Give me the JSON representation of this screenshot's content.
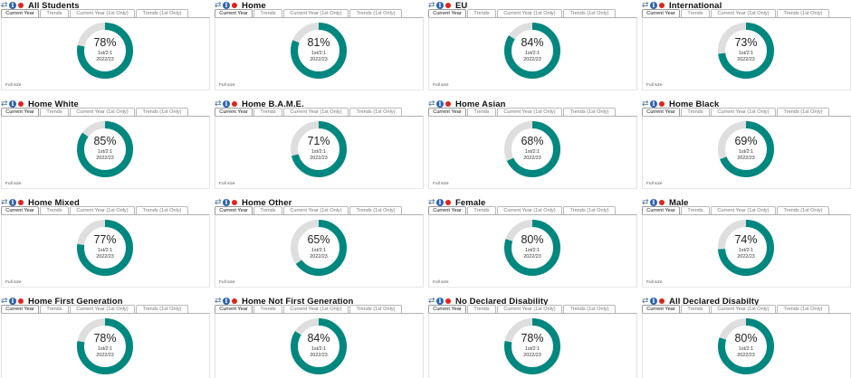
{
  "tabs": [
    "Current Year",
    "Trends",
    "Current Year (1st Only)",
    "Trends (1st Only)"
  ],
  "full_size_label": "Full size",
  "colors": {
    "ring": "#00877f",
    "track": "#dedede",
    "info": "#2a62b4",
    "dot": "#e0241b"
  },
  "icons": [
    "refresh-icon",
    "info-icon",
    "red-dot-icon"
  ],
  "chart_data": [
    {
      "type": "pie",
      "title": "All Students",
      "values": [
        78
      ],
      "label": "78%",
      "line1": "1st/2:1",
      "line2": "2022/23"
    },
    {
      "type": "pie",
      "title": "Home",
      "values": [
        81
      ],
      "label": "81%",
      "line1": "1st/2:1",
      "line2": "2022/23"
    },
    {
      "type": "pie",
      "title": "EU",
      "values": [
        84
      ],
      "label": "84%",
      "line1": "1st/2:1",
      "line2": "2022/23"
    },
    {
      "type": "pie",
      "title": "International",
      "values": [
        73
      ],
      "label": "73%",
      "line1": "1st/2:1",
      "line2": "2022/23"
    },
    {
      "type": "pie",
      "title": "Home White",
      "values": [
        85
      ],
      "label": "85%",
      "line1": "1st/2:1",
      "line2": "2022/23"
    },
    {
      "type": "pie",
      "title": "Home B.A.M.E.",
      "values": [
        71
      ],
      "label": "71%",
      "line1": "1st/2:1",
      "line2": "2022/23"
    },
    {
      "type": "pie",
      "title": "Home Asian",
      "values": [
        68
      ],
      "label": "68%",
      "line1": "1st/2:1",
      "line2": "2022/23"
    },
    {
      "type": "pie",
      "title": "Home Black",
      "values": [
        69
      ],
      "label": "69%",
      "line1": "1st/2:1",
      "line2": "2022/23"
    },
    {
      "type": "pie",
      "title": "Home Mixed",
      "values": [
        77
      ],
      "label": "77%",
      "line1": "1st/2:1",
      "line2": "2022/23"
    },
    {
      "type": "pie",
      "title": "Home Other",
      "values": [
        65
      ],
      "label": "65%",
      "line1": "1st/2:1",
      "line2": "2022/23"
    },
    {
      "type": "pie",
      "title": "Female",
      "values": [
        80
      ],
      "label": "80%",
      "line1": "1st/2:1",
      "line2": "2022/23"
    },
    {
      "type": "pie",
      "title": "Male",
      "values": [
        74
      ],
      "label": "74%",
      "line1": "1st/2:1",
      "line2": "2022/23"
    },
    {
      "type": "pie",
      "title": "Home First Generation",
      "values": [
        78
      ],
      "label": "78%",
      "line1": "1st/2:1",
      "line2": "2022/23"
    },
    {
      "type": "pie",
      "title": "Home Not First Generation",
      "values": [
        84
      ],
      "label": "84%",
      "line1": "1st/2:1",
      "line2": "2022/23"
    },
    {
      "type": "pie",
      "title": "No Declared Disability",
      "values": [
        78
      ],
      "label": "78%",
      "line1": "1st/2:1",
      "line2": "2022/23"
    },
    {
      "type": "pie",
      "title": "All Declared Disabilty",
      "values": [
        80
      ],
      "label": "80%",
      "line1": "1st/2:1",
      "line2": "2022/23"
    }
  ]
}
